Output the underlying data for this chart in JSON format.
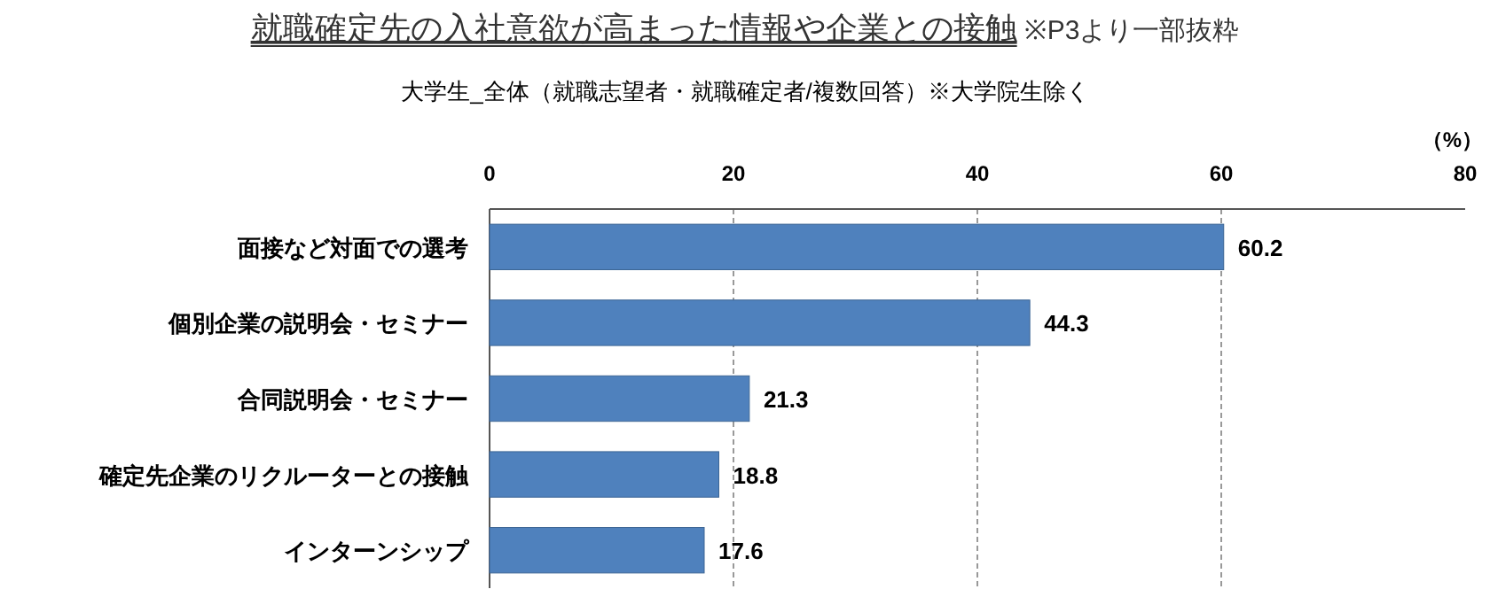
{
  "chart_data": {
    "type": "bar",
    "orientation": "horizontal",
    "title": "就職確定先の入社意欲が高まった情報や企業との接触",
    "subtitle": "大学生_全体（就職志望者・就職確定者/複数回答）※大学院生除く",
    "xlabel": "（%）",
    "annotations": [
      "※P3より一部抜粋"
    ],
    "categories": [
      "面接など対面での選考",
      "個別企業の説明会・セミナー",
      "合同説明会・セミナー",
      "確定先企業のリクルーターとの接触",
      "インターンシップ"
    ],
    "values": [
      60.2,
      44.3,
      21.3,
      18.8,
      17.6
    ],
    "color": "#4f81bd",
    "xlim": [
      0,
      80
    ],
    "xticks": [
      0,
      20,
      40,
      60,
      80
    ],
    "grid": "x",
    "data_labels": true
  }
}
